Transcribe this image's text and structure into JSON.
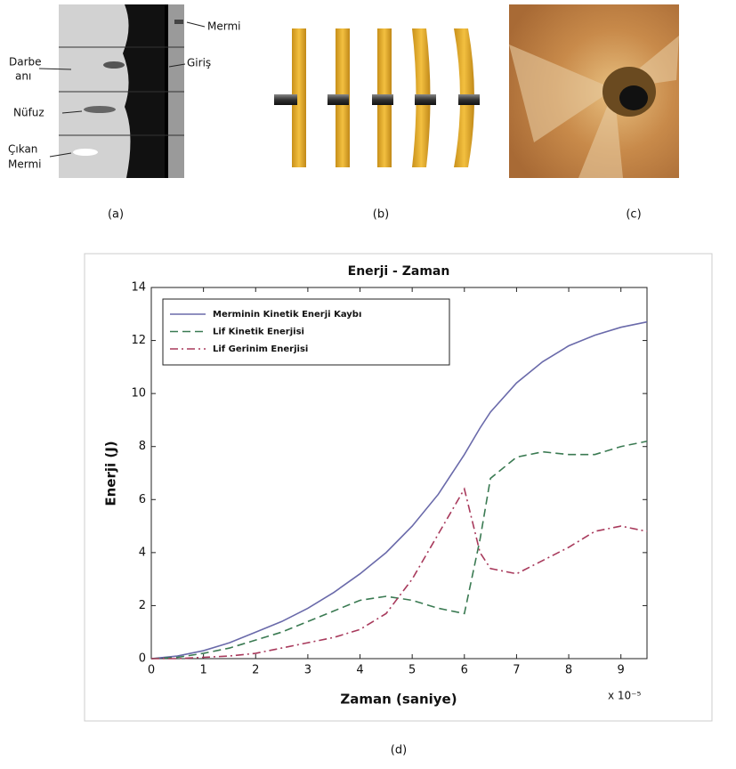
{
  "panels": {
    "a": {
      "caption": "(a)",
      "labels": {
        "mermi": "Mermi",
        "darbe": [
          "Darbe",
          "anı"
        ],
        "giris": "Giriş",
        "nufuz": "Nüfuz",
        "cikan": [
          "Çıkan",
          "Mermi"
        ]
      }
    },
    "b": {
      "caption": "(b)"
    },
    "c": {
      "caption": "(c)"
    },
    "d": {
      "caption": "(d)"
    }
  },
  "chart_data": {
    "type": "line",
    "title": "Enerji - Zaman",
    "xlabel": "Zaman (saniye)",
    "ylabel": "Enerji (J)",
    "x_multiplier": "x 10⁻⁵",
    "x": [
      0,
      0.5,
      1,
      1.5,
      2,
      2.5,
      3,
      3.5,
      4,
      4.5,
      5,
      5.5,
      6,
      6.3,
      6.5,
      7,
      7.5,
      8,
      8.5,
      9,
      9.5
    ],
    "series": [
      {
        "name": "Merminin Kinetik Enerji Kaybı",
        "color": "#6a6aaa",
        "dash": "none",
        "values": [
          0,
          0.1,
          0.3,
          0.6,
          1.0,
          1.4,
          1.9,
          2.5,
          3.2,
          4.0,
          5.0,
          6.2,
          7.7,
          8.7,
          9.3,
          10.4,
          11.2,
          11.8,
          12.2,
          12.5,
          12.7
        ]
      },
      {
        "name": "Lif Kinetik Enerjisi",
        "color": "#3a7a52",
        "dash": "9 5",
        "values": [
          0,
          0.05,
          0.2,
          0.4,
          0.7,
          1.0,
          1.4,
          1.8,
          2.2,
          2.35,
          2.2,
          1.9,
          1.7,
          4.5,
          6.8,
          7.6,
          7.8,
          7.7,
          7.7,
          8.0,
          8.2
        ]
      },
      {
        "name": "Lif Gerinim Enerjisi",
        "color": "#a83a5c",
        "dash": "9 4 2 4",
        "values": [
          0,
          0,
          0.05,
          0.1,
          0.2,
          0.4,
          0.6,
          0.8,
          1.1,
          1.7,
          3.0,
          4.7,
          6.4,
          4.0,
          3.4,
          3.2,
          3.7,
          4.2,
          4.8,
          5.0,
          4.8
        ]
      }
    ],
    "xlim": [
      0,
      9.5
    ],
    "xticks": [
      0,
      1,
      2,
      3,
      4,
      5,
      6,
      7,
      8,
      9
    ],
    "ylim": [
      0,
      14
    ],
    "yticks": [
      0,
      2,
      4,
      6,
      8,
      10,
      12,
      14
    ],
    "grid": false,
    "legend": "upper-left"
  }
}
